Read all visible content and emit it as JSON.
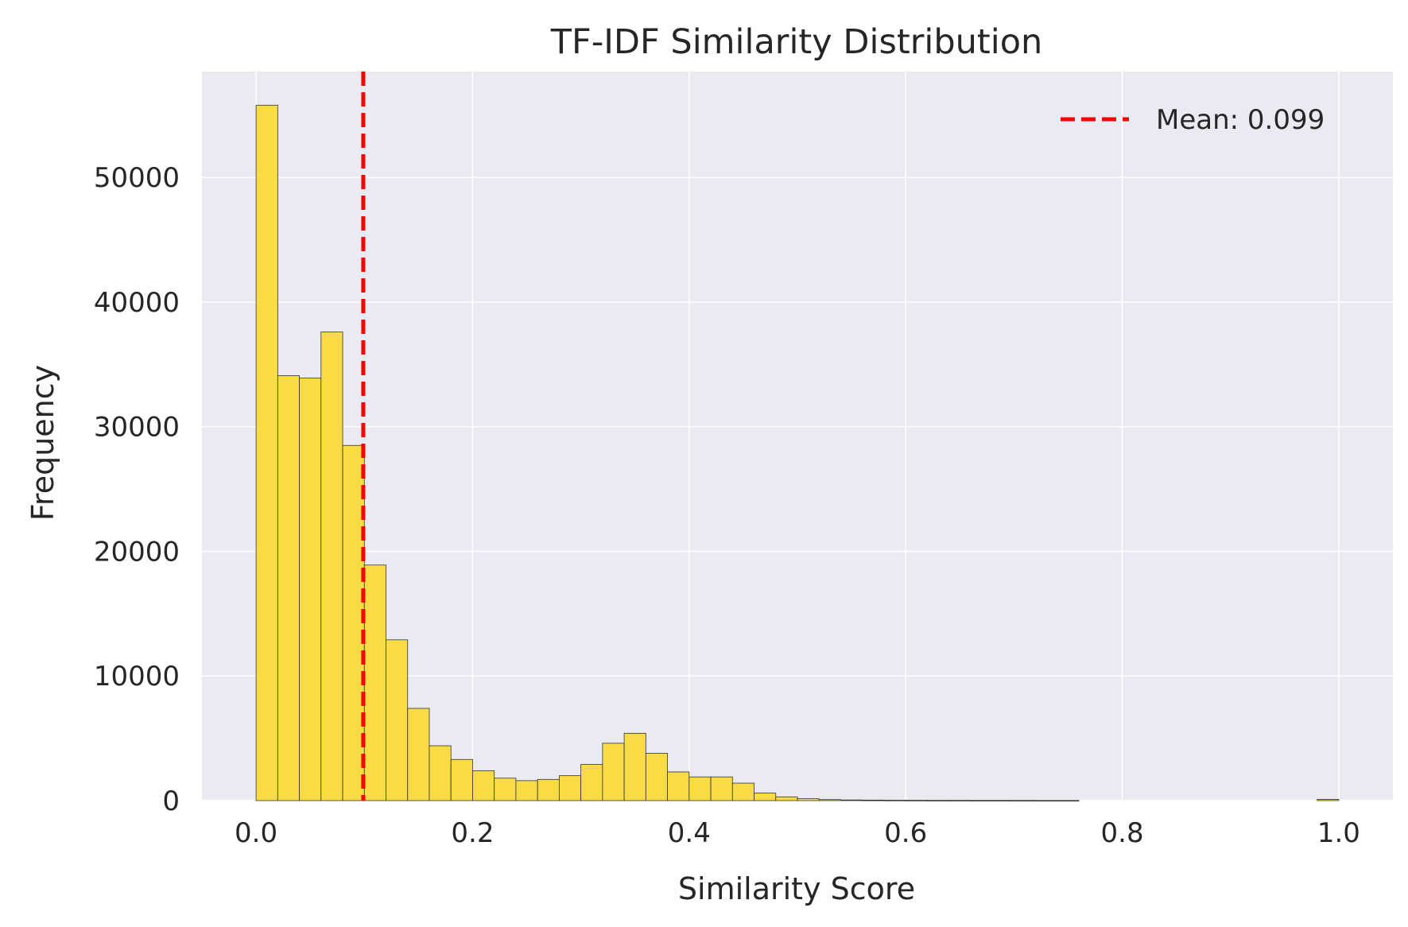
{
  "chart_data": {
    "type": "bar",
    "subtype": "histogram",
    "title": "TF-IDF Similarity Distribution",
    "xlabel": "Similarity Score",
    "ylabel": "Frequency",
    "xlim": [
      -0.05,
      1.05
    ],
    "ylim": [
      0,
      58500
    ],
    "xticks": [
      0.0,
      0.2,
      0.4,
      0.6,
      0.8,
      1.0
    ],
    "xtick_labels": [
      "0.0",
      "0.2",
      "0.4",
      "0.6",
      "0.8",
      "1.0"
    ],
    "yticks": [
      0,
      10000,
      20000,
      30000,
      40000,
      50000
    ],
    "ytick_labels": [
      "0",
      "10000",
      "20000",
      "30000",
      "40000",
      "50000"
    ],
    "grid": true,
    "bar_color": "#f9dc45",
    "edge_color": "#333333",
    "plot_background": "#eaeaf2",
    "bin_width": 0.02,
    "bin_start": 0.0,
    "counts": [
      55800,
      34100,
      33900,
      37600,
      28500,
      18900,
      12900,
      7400,
      4400,
      3300,
      2400,
      1800,
      1600,
      1700,
      2000,
      2900,
      4600,
      5400,
      3800,
      2300,
      1900,
      1900,
      1400,
      600,
      300,
      150,
      80,
      50,
      40,
      30,
      25,
      20,
      20,
      15,
      15,
      12,
      10,
      10,
      0,
      0,
      0,
      0,
      0,
      0,
      0,
      0,
      0,
      0,
      0,
      100
    ],
    "mean_line": {
      "value": 0.099,
      "color": "#ff0000",
      "style": "dashed",
      "label": "Mean: 0.099"
    },
    "legend_position": "top-right"
  }
}
